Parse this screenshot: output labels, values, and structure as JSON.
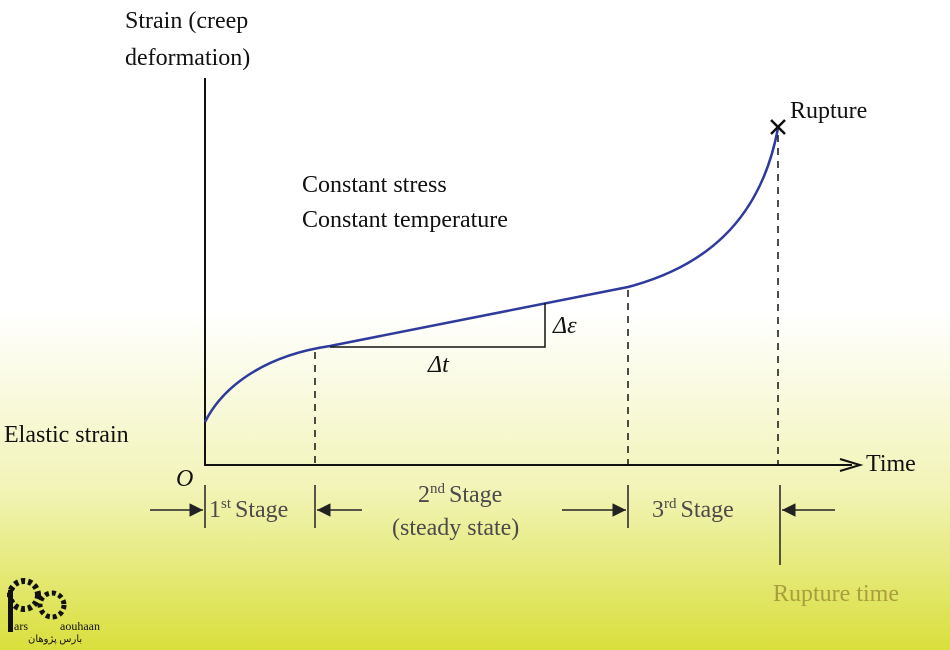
{
  "y_axis_label": [
    "Strain (creep",
    "deformation)"
  ],
  "rupture": "Rupture",
  "conditions": [
    "Constant stress",
    "Constant temperature"
  ],
  "delta_strain": "Δε",
  "delta_time": "Δt",
  "elastic_strain": "Elastic strain",
  "origin": "O",
  "x_axis_label": "Time",
  "stages": [
    {
      "number": "1",
      "suffix": "st",
      "label": "Stage"
    },
    {
      "number": "2",
      "suffix": "nd",
      "label": "Stage",
      "note": "(steady state)"
    },
    {
      "number": "3",
      "suffix": "rd",
      "label": "Stage"
    }
  ],
  "rupture_time": "Rupture time",
  "logo": {
    "left": "ars",
    "right": "aouhaan",
    "persian": "بارس پژوهان"
  }
}
